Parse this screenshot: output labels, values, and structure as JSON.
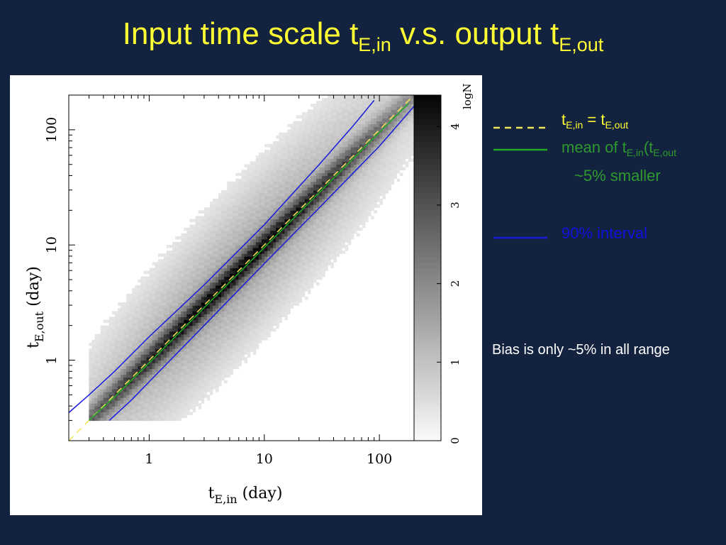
{
  "title": {
    "pre": "Input time scale t",
    "sub1": "E,in",
    "mid": " v.s. output t",
    "sub2": "E,out"
  },
  "colors": {
    "background": "#13223f",
    "title": "#ffff33",
    "identity_line": "#f2e65a",
    "mean_line": "#22aa22",
    "interval_line": "#1a1adb",
    "legend_identity_text": "#ffff33",
    "legend_mean_text": "#2e9a2e",
    "legend_interval_text": "#1111dd",
    "note_text": "#ffffff"
  },
  "legend": {
    "identity": {
      "t1": "t",
      "s1": "E,in",
      "t2": " = t",
      "s2": "E,out"
    },
    "mean": {
      "t1": "mean of t",
      "s1": "E,in",
      "t2": "(t",
      "s2": "E,out",
      "line2": "~5% smaller"
    },
    "interval": {
      "label": "90% interval"
    }
  },
  "note": "Bias is only ~5% in all range",
  "chart_data": {
    "type": "heatmap",
    "xlabel": {
      "main": "t",
      "sub": "E,in",
      "unit": " (day)"
    },
    "ylabel": {
      "main": "t",
      "sub": "E,out",
      "unit": " (day)"
    },
    "x_scale": "log",
    "y_scale": "log",
    "xlim": [
      0.2,
      200
    ],
    "ylim": [
      0.2,
      200
    ],
    "x_ticks": [
      {
        "value": 1,
        "label": "1"
      },
      {
        "value": 10,
        "label": "10"
      },
      {
        "value": 100,
        "label": "100"
      }
    ],
    "y_ticks": [
      {
        "value": 1,
        "label": "1"
      },
      {
        "value": 10,
        "label": "10"
      },
      {
        "value": 100,
        "label": "100"
      }
    ],
    "colorbar": {
      "label": "logN",
      "range": [
        0,
        4.4
      ],
      "ticks": [
        "0",
        "1",
        "2",
        "3",
        "4"
      ],
      "colormap": "white-to-black"
    },
    "density_model": {
      "x_min": 0.3,
      "x_max": 200,
      "y_min": 0.3,
      "y_max": 200,
      "peak_logN": 4.4,
      "core_halfwidth_dex": 0.09,
      "wing_halfwidth_dex": 0.5
    },
    "series": [
      {
        "name": "t_E,in = t_E,out",
        "style": "dashed",
        "x": [
          0.2,
          200
        ],
        "y": [
          0.2,
          200
        ]
      },
      {
        "name": "mean of t_E,in(t_E,out)",
        "style": "solid",
        "x": [
          0.3,
          0.5,
          1,
          3,
          10,
          30,
          100,
          180
        ],
        "y": [
          0.3,
          0.48,
          0.95,
          2.85,
          9.5,
          28.5,
          95,
          170
        ]
      },
      {
        "name": "90% interval upper",
        "style": "solid",
        "x": [
          0.2,
          0.3,
          0.5,
          1,
          3,
          10,
          30,
          60,
          90
        ],
        "y": [
          0.35,
          0.5,
          0.8,
          1.6,
          4.5,
          15,
          50,
          110,
          180
        ]
      },
      {
        "name": "90% interval lower",
        "style": "solid",
        "x": [
          0.45,
          0.7,
          1,
          3,
          10,
          30,
          100,
          200
        ],
        "y": [
          0.3,
          0.45,
          0.65,
          2.0,
          6.9,
          21,
          72,
          160
        ]
      }
    ]
  }
}
